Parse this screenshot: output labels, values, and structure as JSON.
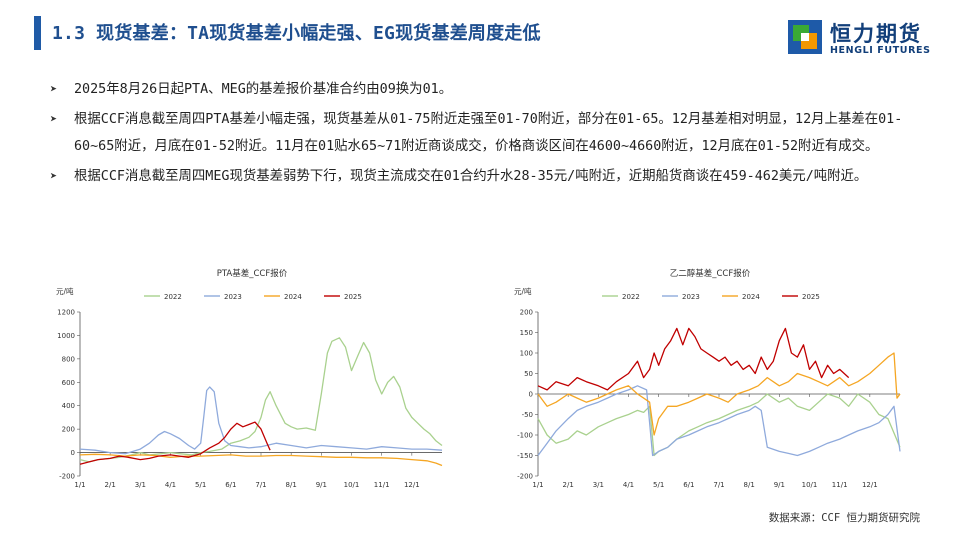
{
  "header": {
    "title": "1.3 现货基差：TA现货基差小幅走强、EG现货基差周度走低"
  },
  "logo": {
    "cn": "恒力期货",
    "en": "HENGLI FUTURES",
    "colors": {
      "blue": "#1e5aa8",
      "green": "#3aa935",
      "orange": "#f39800"
    }
  },
  "bullets": [
    "2025年8月26日起PTA、MEG的基差报价基准合约由09换为01。",
    "根据CCF消息截至周四PTA基差小幅走强，现货基差从01-75附近走强至01-70附近，部分在01-65。12月基差相对明显，12月上基差在01-60~65附近，月底在01-52附近。11月在01贴水65~71附近商谈成交，价格商谈区间在4600~4660附近，12月底在01-52附近有成交。",
    "根据CCF消息截至周四MEG现货基差弱势下行，现货主流成交在01合约升水28-35元/吨附近，近期船货商谈在459-462美元/吨附近。"
  ],
  "source": "数据来源：CCF 恒力期货研究院",
  "chart_data": [
    {
      "type": "line",
      "title": "PTA基差_CCF报价",
      "ylabel": "元/吨",
      "ylim": [
        -200,
        1200
      ],
      "yticks": [
        -200,
        0,
        200,
        400,
        600,
        800,
        1000,
        1200
      ],
      "xlim": [
        1,
        13
      ],
      "xticks": [
        "1/1",
        "2/1",
        "3/1",
        "4/1",
        "5/1",
        "6/1",
        "7/1",
        "8/1",
        "9/1",
        "10/1",
        "11/1",
        "12/1"
      ],
      "grid": false,
      "legend_position": "top",
      "series": [
        {
          "name": "2022",
          "color": "#a9d18e",
          "x": [
            1,
            1.3,
            1.6,
            2,
            2.3,
            2.7,
            3,
            3.3,
            3.7,
            4,
            4.3,
            4.7,
            5,
            5.3,
            5.7,
            6,
            6.3,
            6.6,
            6.8,
            7,
            7.15,
            7.3,
            7.5,
            7.8,
            8,
            8.2,
            8.5,
            8.8,
            9,
            9.2,
            9.35,
            9.6,
            9.8,
            10,
            10.2,
            10.4,
            10.6,
            10.8,
            11,
            11.2,
            11.4,
            11.6,
            11.8,
            12,
            12.2,
            12.4,
            12.6,
            12.8,
            13
          ],
          "y": [
            -60,
            -80,
            -60,
            -50,
            -40,
            -20,
            0,
            -20,
            -10,
            0,
            -10,
            -20,
            0,
            10,
            30,
            80,
            100,
            130,
            180,
            300,
            450,
            520,
            400,
            250,
            220,
            200,
            210,
            190,
            500,
            850,
            950,
            980,
            900,
            700,
            820,
            940,
            850,
            620,
            500,
            600,
            650,
            560,
            380,
            300,
            250,
            200,
            160,
            100,
            60
          ]
        },
        {
          "name": "2023",
          "color": "#8faadc",
          "x": [
            1,
            1.5,
            2,
            2.5,
            3,
            3.3,
            3.6,
            3.8,
            4,
            4.3,
            4.6,
            4.8,
            5,
            5.1,
            5.2,
            5.3,
            5.45,
            5.6,
            5.8,
            6,
            6.3,
            6.6,
            7,
            7.5,
            8,
            8.5,
            9,
            9.5,
            10,
            10.5,
            11,
            11.5,
            12,
            12.5,
            13
          ],
          "y": [
            30,
            20,
            0,
            -10,
            30,
            80,
            150,
            180,
            160,
            120,
            60,
            30,
            80,
            300,
            530,
            560,
            520,
            250,
            100,
            60,
            50,
            40,
            50,
            80,
            60,
            40,
            60,
            50,
            40,
            30,
            50,
            40,
            30,
            30,
            20
          ]
        },
        {
          "name": "2024",
          "color": "#f5a623",
          "x": [
            1,
            1.5,
            2,
            2.5,
            3,
            3.5,
            4,
            4.5,
            5,
            5.5,
            6,
            6.5,
            7,
            7.5,
            8,
            8.5,
            9,
            9.5,
            10,
            10.5,
            11,
            11.5,
            12,
            12.5,
            12.8,
            13
          ],
          "y": [
            -20,
            -15,
            -20,
            -30,
            -20,
            -25,
            -40,
            -30,
            -30,
            -25,
            -20,
            -30,
            -30,
            -25,
            -25,
            -30,
            -35,
            -40,
            -40,
            -45,
            -45,
            -50,
            -60,
            -70,
            -90,
            -110
          ]
        },
        {
          "name": "2025",
          "color": "#c00000",
          "x": [
            1,
            1.3,
            1.6,
            2,
            2.3,
            2.6,
            3,
            3.3,
            3.6,
            4,
            4.3,
            4.6,
            5,
            5.3,
            5.6,
            5.8,
            6,
            6.2,
            6.4,
            6.6,
            6.8,
            7,
            7.2,
            7.3
          ],
          "y": [
            -100,
            -80,
            -60,
            -50,
            -30,
            -40,
            -60,
            -50,
            -30,
            -20,
            -30,
            -40,
            -10,
            40,
            80,
            130,
            200,
            250,
            220,
            240,
            260,
            200,
            80,
            20
          ]
        }
      ]
    },
    {
      "type": "line",
      "title": "乙二醇基差_CCF报价",
      "ylabel": "元/吨",
      "ylim": [
        -200,
        200
      ],
      "yticks": [
        -200,
        -150,
        -100,
        -50,
        0,
        50,
        100,
        150,
        200
      ],
      "xlim": [
        1,
        13
      ],
      "xticks": [
        "1/1",
        "2/1",
        "3/1",
        "4/1",
        "5/1",
        "6/1",
        "7/1",
        "8/1",
        "9/1",
        "10/1",
        "11/1",
        "12/1"
      ],
      "grid": false,
      "legend_position": "top",
      "series": [
        {
          "name": "2022",
          "color": "#a9d18e",
          "x": [
            1,
            1.3,
            1.6,
            2,
            2.3,
            2.6,
            3,
            3.3,
            3.6,
            4,
            4.3,
            4.5,
            4.7,
            4.85,
            5,
            5.3,
            5.6,
            6,
            6.3,
            6.6,
            7,
            7.3,
            7.6,
            8,
            8.3,
            8.6,
            9,
            9.3,
            9.6,
            10,
            10.3,
            10.6,
            11,
            11.3,
            11.6,
            12,
            12.3,
            12.6,
            13
          ],
          "y": [
            -60,
            -100,
            -120,
            -110,
            -90,
            -100,
            -80,
            -70,
            -60,
            -50,
            -40,
            -45,
            -30,
            -150,
            -140,
            -130,
            -110,
            -90,
            -80,
            -70,
            -60,
            -50,
            -40,
            -30,
            -20,
            0,
            -20,
            -10,
            -30,
            -40,
            -20,
            0,
            -10,
            -30,
            0,
            -20,
            -50,
            -60,
            -130
          ]
        },
        {
          "name": "2023",
          "color": "#8faadc",
          "x": [
            1,
            1.3,
            1.6,
            2,
            2.3,
            2.6,
            3,
            3.3,
            3.6,
            4,
            4.3,
            4.6,
            4.8,
            5,
            5.3,
            5.6,
            6,
            6.3,
            6.6,
            7,
            7.3,
            7.6,
            8,
            8.2,
            8.4,
            8.6,
            9,
            9.3,
            9.6,
            10,
            10.3,
            10.6,
            11,
            11.3,
            11.6,
            12,
            12.3,
            12.6,
            12.8,
            13
          ],
          "y": [
            -150,
            -120,
            -90,
            -60,
            -40,
            -30,
            -20,
            -10,
            0,
            10,
            20,
            10,
            -150,
            -140,
            -130,
            -110,
            -100,
            -90,
            -80,
            -70,
            -60,
            -50,
            -40,
            -30,
            -40,
            -130,
            -140,
            -145,
            -150,
            -140,
            -130,
            -120,
            -110,
            -100,
            -90,
            -80,
            -70,
            -50,
            -30,
            -140
          ]
        },
        {
          "name": "2024",
          "color": "#f5a623",
          "x": [
            1,
            1.3,
            1.6,
            2,
            2.3,
            2.6,
            3,
            3.3,
            3.6,
            4,
            4.3,
            4.5,
            4.7,
            4.85,
            5,
            5.3,
            5.6,
            6,
            6.3,
            6.6,
            7,
            7.3,
            7.6,
            8,
            8.3,
            8.6,
            9,
            9.3,
            9.6,
            10,
            10.3,
            10.6,
            11,
            11.3,
            11.6,
            12,
            12.3,
            12.6,
            12.8,
            12.9,
            13
          ],
          "y": [
            0,
            -30,
            -20,
            0,
            -10,
            -20,
            -10,
            0,
            10,
            20,
            0,
            -10,
            -20,
            -100,
            -60,
            -30,
            -30,
            -20,
            -10,
            0,
            -10,
            -20,
            0,
            10,
            20,
            40,
            20,
            30,
            50,
            40,
            30,
            20,
            40,
            20,
            30,
            50,
            70,
            90,
            100,
            -10,
            0
          ]
        },
        {
          "name": "2025",
          "color": "#c00000",
          "x": [
            1,
            1.3,
            1.6,
            2,
            2.3,
            2.6,
            3,
            3.3,
            3.6,
            4,
            4.3,
            4.5,
            4.7,
            4.85,
            5,
            5.2,
            5.4,
            5.6,
            5.8,
            6,
            6.2,
            6.4,
            6.6,
            6.8,
            7,
            7.2,
            7.4,
            7.6,
            7.8,
            8,
            8.2,
            8.4,
            8.6,
            8.8,
            9,
            9.2,
            9.4,
            9.6,
            9.8,
            10,
            10.2,
            10.4,
            10.6,
            10.8,
            11,
            11.3
          ],
          "y": [
            20,
            10,
            30,
            20,
            40,
            30,
            20,
            10,
            30,
            50,
            80,
            40,
            60,
            100,
            70,
            110,
            130,
            160,
            120,
            160,
            140,
            110,
            100,
            90,
            80,
            90,
            70,
            80,
            60,
            70,
            50,
            90,
            60,
            80,
            130,
            160,
            100,
            90,
            120,
            60,
            80,
            40,
            70,
            50,
            60,
            40
          ]
        }
      ]
    }
  ]
}
